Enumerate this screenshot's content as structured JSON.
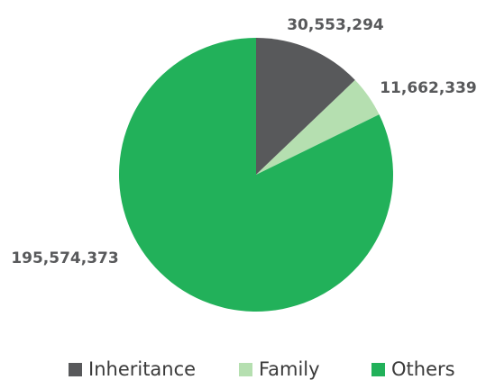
{
  "chart_data": {
    "type": "pie",
    "categories": [
      "Inheritance",
      "Family",
      "Others"
    ],
    "values": [
      30553294,
      11662339,
      195574373
    ],
    "value_labels": [
      "30,553,294",
      "11,662,339",
      "195,574,373"
    ],
    "colors": [
      "#58595b",
      "#b5dfb0",
      "#22b15a"
    ],
    "legend": "bottom"
  }
}
